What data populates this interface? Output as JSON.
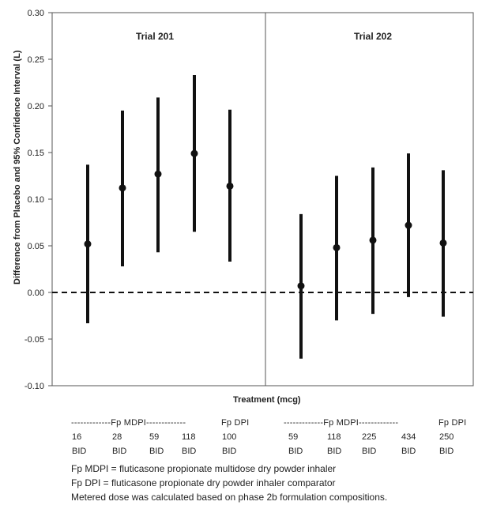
{
  "chart_data": {
    "type": "scatter",
    "subtype": "point-with-confidence-interval",
    "ylabel": "Difference from Placebo and 95% Confidence Interval (L)",
    "xlabel": "Treatment (mcg)",
    "ylim": [
      -0.1,
      0.3
    ],
    "yticks": [
      "0.30",
      "0.25",
      "0.20",
      "0.15",
      "0.10",
      "0.05",
      "0.00",
      "-0.05",
      "-0.10"
    ],
    "reference_line": 0.0,
    "panels": [
      {
        "title": "Trial 201",
        "points": [
          {
            "dose": "16",
            "freq": "BID",
            "estimate": 0.052,
            "lower": -0.033,
            "upper": 0.137
          },
          {
            "dose": "28",
            "freq": "BID",
            "estimate": 0.112,
            "lower": 0.028,
            "upper": 0.195
          },
          {
            "dose": "59",
            "freq": "BID",
            "estimate": 0.127,
            "lower": 0.043,
            "upper": 0.209
          },
          {
            "dose": "118",
            "freq": "BID",
            "estimate": 0.149,
            "lower": 0.065,
            "upper": 0.233
          },
          {
            "dose": "100",
            "freq": "BID",
            "estimate": 0.114,
            "lower": 0.033,
            "upper": 0.196
          }
        ],
        "group_labels": [
          {
            "text": "-------------Fp MDPI-------------"
          },
          {
            "text": "Fp DPI"
          }
        ]
      },
      {
        "title": "Trial 202",
        "points": [
          {
            "dose": "59",
            "freq": "BID",
            "estimate": 0.007,
            "lower": -0.071,
            "upper": 0.084
          },
          {
            "dose": "118",
            "freq": "BID",
            "estimate": 0.048,
            "lower": -0.03,
            "upper": 0.125
          },
          {
            "dose": "225",
            "freq": "BID",
            "estimate": 0.056,
            "lower": -0.023,
            "upper": 0.134
          },
          {
            "dose": "434",
            "freq": "BID",
            "estimate": 0.072,
            "lower": -0.005,
            "upper": 0.149
          },
          {
            "dose": "250",
            "freq": "BID",
            "estimate": 0.053,
            "lower": -0.026,
            "upper": 0.131
          }
        ],
        "group_labels": [
          {
            "text": "-------------Fp MDPI-------------"
          },
          {
            "text": "Fp DPI"
          }
        ]
      }
    ]
  },
  "footnotes": [
    "Fp MDPI = fluticasone propionate multidose dry powder inhaler",
    "Fp DPI = fluticasone propionate dry powder inhaler comparator",
    "Metered dose was calculated based on phase 2b formulation compositions."
  ],
  "colors": {
    "marker": "#111111",
    "axis": "#555555"
  }
}
